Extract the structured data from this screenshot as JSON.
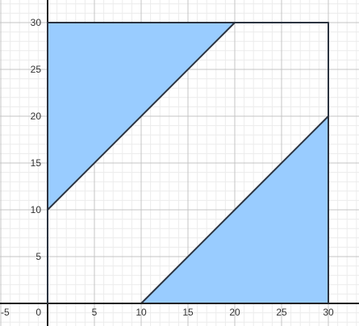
{
  "chart_data": {
    "type": "area",
    "title": "",
    "xlabel": "",
    "ylabel": "",
    "xlim": [
      -5,
      33.3
    ],
    "ylim": [
      -2.3,
      32.4
    ],
    "grid": true,
    "x_ticks": [
      -5,
      0,
      5,
      10,
      15,
      20,
      25,
      30
    ],
    "x_tick_labels": [
      "-5",
      "0",
      "5",
      "10",
      "15",
      "20",
      "25",
      "30"
    ],
    "y_ticks": [
      5,
      10,
      15,
      20,
      25,
      30
    ],
    "y_tick_labels": [
      "5",
      "10",
      "15",
      "20",
      "25",
      "30"
    ],
    "regions": [
      {
        "points": [
          [
            0,
            10
          ],
          [
            0,
            30
          ],
          [
            20,
            30
          ]
        ]
      },
      {
        "points": [
          [
            10,
            0
          ],
          [
            30,
            0
          ],
          [
            30,
            20
          ]
        ]
      }
    ],
    "outline": [
      [
        0,
        0
      ],
      [
        0,
        30
      ],
      [
        30,
        30
      ],
      [
        30,
        0
      ]
    ],
    "fill_color": "#99ccff",
    "stroke_color": "#2b3340"
  }
}
